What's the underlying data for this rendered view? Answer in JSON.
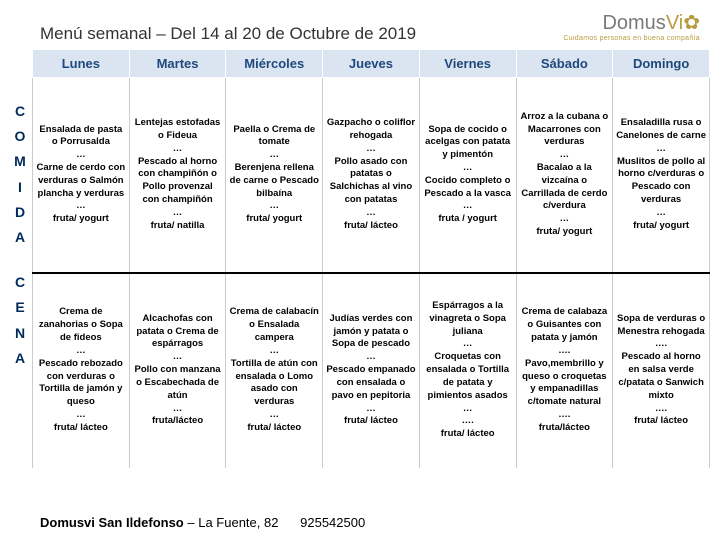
{
  "title": "Menú semanal – Del 14 al 20 de Octubre de 2019",
  "logo": {
    "brand_prefix": "Domus",
    "brand_accent": "Vi",
    "tagline": "Cuidamos personas en buena compañía"
  },
  "colors": {
    "header_bg": "#dbe5f1",
    "header_text": "#1f497d",
    "side_text": "#002a5c",
    "accent": "#b89b3e"
  },
  "days": [
    "Lunes",
    "Martes",
    "Miércoles",
    "Jueves",
    "Viernes",
    "Sábado",
    "Domingo"
  ],
  "rows": [
    {
      "label": "COMIDA",
      "cells": [
        "Ensalada de pasta o Porrusalda\n…\nCarne de cerdo con verduras o Salmón plancha y verduras\n…\nfruta/ yogurt",
        "Lentejas estofadas o Fideua\n…\nPescado al horno con champiñón o Pollo provenzal con champiñón\n…\nfruta/ natilla",
        "Paella o Crema de tomate\n…\nBerenjena rellena de carne o Pescado bilbaína\n…\nfruta/ yogurt",
        "Gazpacho o coliflor rehogada\n…\nPollo asado con patatas o Salchichas al vino con patatas\n…\nfruta/ lácteo",
        "Sopa de cocido o acelgas con patata y pimentón\n…\nCocido completo o Pescado a la vasca\n…\nfruta / yogurt",
        "Arroz a la cubana o Macarrones con verduras\n…\nBacalao a la vizcaína o Carrillada de cerdo c/verdura\n…\nfruta/ yogurt",
        "Ensaladilla rusa o Canelones de carne\n…\nMuslitos de pollo al horno c/verduras o Pescado con verduras\n…\nfruta/ yogurt"
      ]
    },
    {
      "label": "CENA",
      "cells": [
        "Crema de zanahorias o Sopa de fideos\n…\nPescado rebozado con verduras o Tortilla de jamón y queso\n…\nfruta/ lácteo",
        "Alcachofas con patata o Crema de espárragos\n…\nPollo con manzana o Escabechada de atún\n…\nfruta/lácteo",
        "Crema de calabacín o Ensalada campera\n…\nTortilla de atún con ensalada o Lomo asado con verduras\n…\nfruta/ lácteo",
        "Judías verdes con jamón y patata o Sopa de pescado\n…\nPescado empanado con ensalada o pavo en pepitoria\n…\nfruta/ lácteo",
        "Espárragos a la vinagreta o Sopa juliana\n…\nCroquetas con ensalada o Tortilla de patata y pimientos asados\n…\n….\nfruta/ lácteo",
        "Crema de calabaza o Guisantes con patata y jamón\n….\nPavo,membrillo y queso o croquetas y empanadillas c/tomate natural\n….\nfruta/lácteo",
        "Sopa de verduras o Menestra rehogada\n….\nPescado al horno en salsa verde c/patata o Sanwich mixto\n….\nfruta/ lácteo"
      ]
    }
  ],
  "footer": {
    "name": "Domusvi San Ildefonso",
    "address": "– La Fuente, 82",
    "phone": "925542500"
  }
}
